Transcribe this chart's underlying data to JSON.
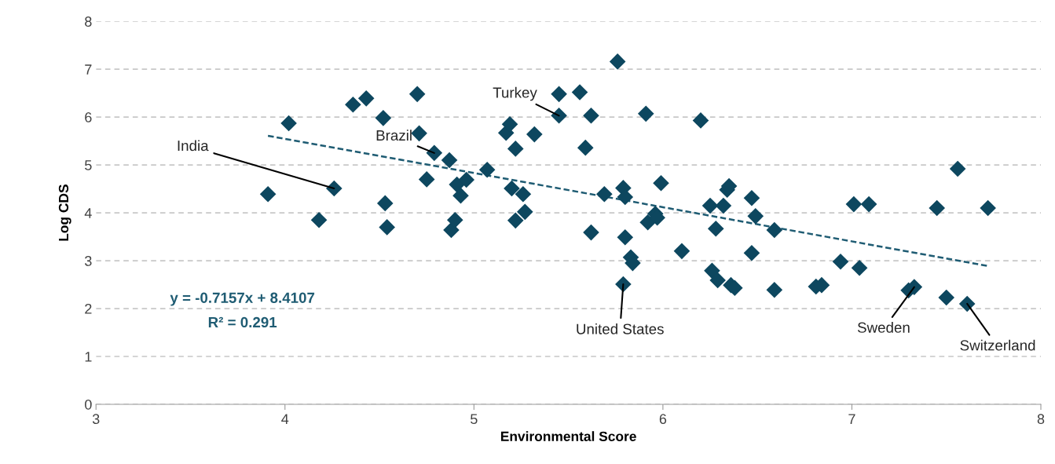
{
  "chart_data": {
    "type": "scatter",
    "xlabel": "Environmental Score",
    "ylabel": "Log CDS",
    "xlim": [
      3,
      8
    ],
    "xticks": [
      3,
      4,
      5,
      6,
      7,
      8
    ],
    "ylim": [
      0,
      8
    ],
    "yticks": [
      0,
      1,
      2,
      3,
      4,
      5,
      6,
      7,
      8
    ],
    "grid": "y",
    "series": [
      {
        "marker": "diamond",
        "color": "#0d475f",
        "x": [
          3.91,
          4.02,
          4.18,
          4.26,
          4.36,
          4.43,
          4.52,
          4.53,
          4.54,
          4.7,
          4.71,
          4.75,
          4.79,
          4.87,
          4.88,
          4.9,
          4.91,
          4.93,
          4.96,
          5.07,
          5.17,
          5.19,
          5.2,
          5.22,
          5.22,
          5.26,
          5.27,
          5.32,
          5.45,
          5.45,
          5.56,
          5.59,
          5.62,
          5.62,
          5.69,
          5.76,
          5.79,
          5.8,
          5.8,
          5.79,
          5.83,
          5.84,
          5.91,
          5.92,
          5.96,
          5.97,
          5.99,
          6.1,
          6.2,
          6.25,
          6.26,
          6.28,
          6.29,
          6.32,
          6.34,
          6.35,
          6.36,
          6.38,
          6.47,
          6.47,
          6.49,
          6.59,
          6.59,
          6.81,
          6.84,
          6.94,
          7.04,
          7.01,
          7.09,
          7.3,
          7.33,
          7.5,
          7.61,
          7.45,
          7.56,
          7.72
        ],
        "values": [
          4.39,
          5.87,
          3.85,
          4.51,
          6.26,
          6.39,
          5.98,
          4.2,
          3.7,
          6.48,
          5.66,
          4.7,
          5.25,
          5.1,
          3.64,
          3.85,
          4.59,
          4.36,
          4.69,
          4.9,
          5.67,
          5.85,
          4.51,
          3.84,
          5.34,
          4.39,
          4.02,
          5.64,
          6.48,
          6.03,
          6.52,
          5.36,
          6.03,
          3.59,
          4.39,
          7.16,
          4.52,
          4.33,
          3.49,
          2.51,
          3.07,
          2.95,
          6.07,
          3.8,
          3.98,
          3.9,
          4.62,
          3.2,
          5.93,
          4.15,
          2.79,
          3.67,
          2.59,
          4.15,
          4.48,
          4.56,
          2.49,
          2.43,
          3.16,
          4.31,
          3.93,
          2.39,
          3.64,
          2.46,
          2.49,
          2.98,
          2.85,
          4.18,
          4.18,
          2.38,
          2.45,
          2.23,
          2.1,
          4.1,
          4.92,
          4.1
        ]
      },
      {
        "type": "line",
        "marker": "none",
        "color": "#1f5c73",
        "line_style": "dashed",
        "x": [
          3.91,
          7.72
        ],
        "values": [
          5.61,
          2.89
        ]
      }
    ],
    "annotations": [
      {
        "text": "India",
        "x": 4.26,
        "y": 4.51
      },
      {
        "text": "Brazil",
        "x": 4.79,
        "y": 5.25
      },
      {
        "text": "Turkey",
        "x": 5.45,
        "y": 6.03
      },
      {
        "text": "United States",
        "x": 5.79,
        "y": 2.51
      },
      {
        "text": "Sweden",
        "x": 7.33,
        "y": 2.45
      },
      {
        "text": "Switzerland",
        "x": 7.61,
        "y": 2.1
      },
      "y = -0.7157x + 8.4107",
      "R² = 0.291"
    ]
  }
}
